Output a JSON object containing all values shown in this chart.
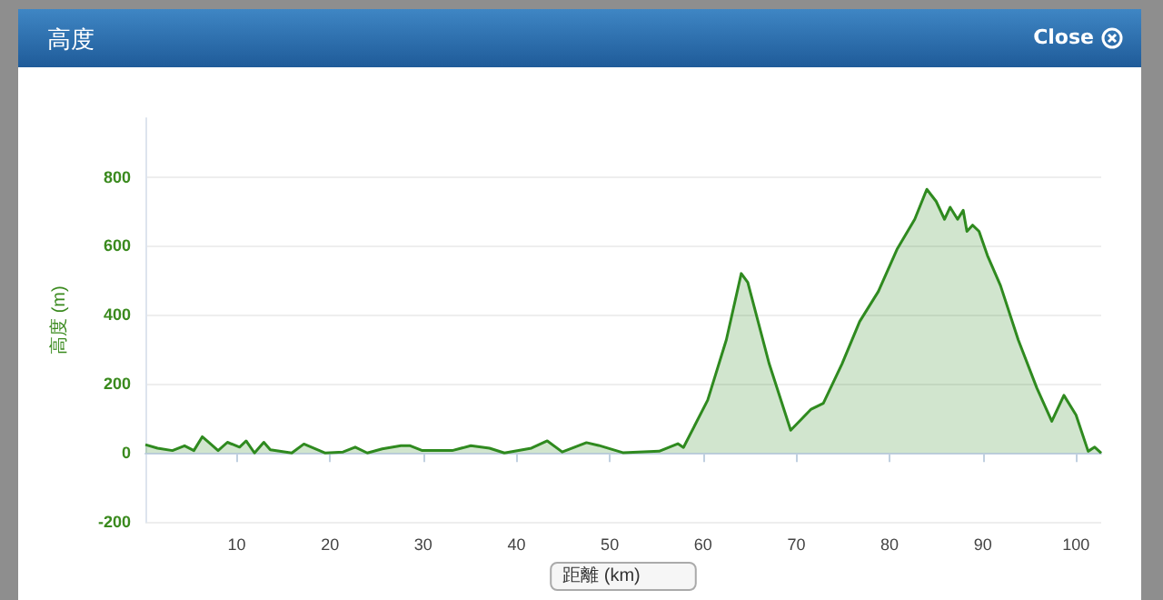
{
  "chart_data": {
    "type": "area",
    "title": "高度",
    "xlabel": "距離 (km)",
    "ylabel": "高度 (m)",
    "annotations": [
      "Close"
    ],
    "x": [
      0.2,
      1.5,
      3.1,
      4.4,
      5.4,
      6.3,
      7.2,
      8.0,
      9.0,
      10.3,
      11.0,
      11.9,
      12.9,
      13.6,
      15.9,
      17.2,
      19.5,
      21.4,
      22.7,
      24.0,
      25.6,
      27.6,
      28.6,
      29.9,
      33.1,
      35.1,
      37.1,
      38.7,
      41.6,
      43.3,
      44.9,
      47.5,
      48.8,
      51.4,
      55.3,
      57.3,
      57.9,
      60.5,
      62.5,
      64.1,
      64.8,
      67.1,
      69.4,
      71.6,
      72.9,
      74.9,
      76.8,
      78.8,
      80.8,
      82.7,
      84.0,
      85.0,
      85.9,
      86.5,
      87.3,
      87.9,
      88.3,
      88.9,
      89.6,
      90.5,
      91.9,
      93.8,
      95.8,
      97.4,
      98.7,
      100.0,
      101.3,
      102.0,
      102.7
    ],
    "series": [
      {
        "color": "#2f8a1f",
        "values": [
          24,
          14,
          7,
          21,
          7,
          47,
          26,
          7,
          31,
          17,
          35,
          0,
          31,
          9,
          0,
          26,
          0,
          3,
          17,
          0,
          12,
          21,
          21,
          7,
          7,
          21,
          14,
          0,
          14,
          35,
          3,
          30,
          22,
          1,
          5,
          27,
          16,
          153,
          328,
          520,
          494,
          258,
          66,
          127,
          144,
          258,
          381,
          468,
          590,
          677,
          764,
          729,
          677,
          712,
          677,
          703,
          642,
          660,
          642,
          572,
          485,
          328,
          188,
          92,
          167,
          110,
          5,
          17,
          0
        ]
      }
    ],
    "xlim": [
      0.2,
      102.7
    ],
    "xticks": [
      10,
      20,
      30,
      40,
      50,
      60,
      70,
      80,
      90,
      100
    ],
    "ylim": [
      -200,
      970
    ],
    "yticks": [
      -200,
      0,
      200,
      400,
      600,
      800
    ],
    "grid": "y",
    "marker": "none",
    "line_style": "solid"
  }
}
